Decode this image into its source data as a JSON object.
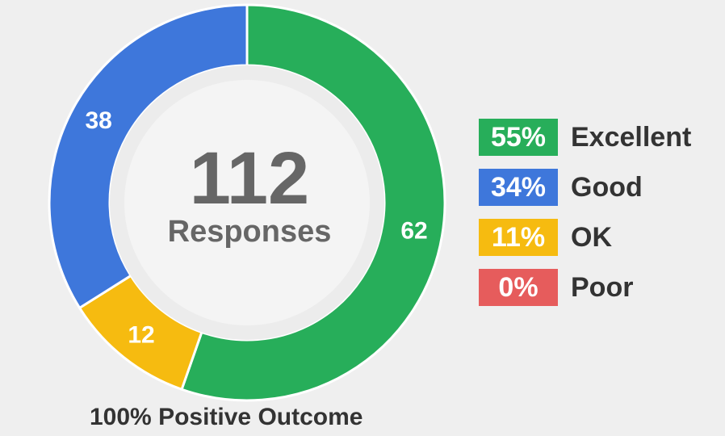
{
  "chart_data": {
    "type": "pie",
    "center": {
      "count": "112",
      "caption": "Responses"
    },
    "slices": [
      {
        "label": "Excellent",
        "value": 62,
        "percent_label": "55%",
        "color": "#27ae5a"
      },
      {
        "label": "OK",
        "value": 12,
        "percent_label": "11%",
        "color": "#f6bb10"
      },
      {
        "label": "Good",
        "value": 38,
        "percent_label": "34%",
        "color": "#3e77db"
      },
      {
        "label": "Poor",
        "value": 0,
        "percent_label": "0%",
        "color": "#e65c5c"
      }
    ],
    "legend": [
      {
        "percent": "55%",
        "label": "Excellent",
        "color": "#27ae5a"
      },
      {
        "percent": "34%",
        "label": "Good",
        "color": "#3e77db"
      },
      {
        "percent": "11%",
        "label": "OK",
        "color": "#f6bb10"
      },
      {
        "percent": "0%",
        "label": "Poor",
        "color": "#e65c5c"
      }
    ],
    "legend_placement": "right",
    "footer": "100% Positive Outcome"
  }
}
